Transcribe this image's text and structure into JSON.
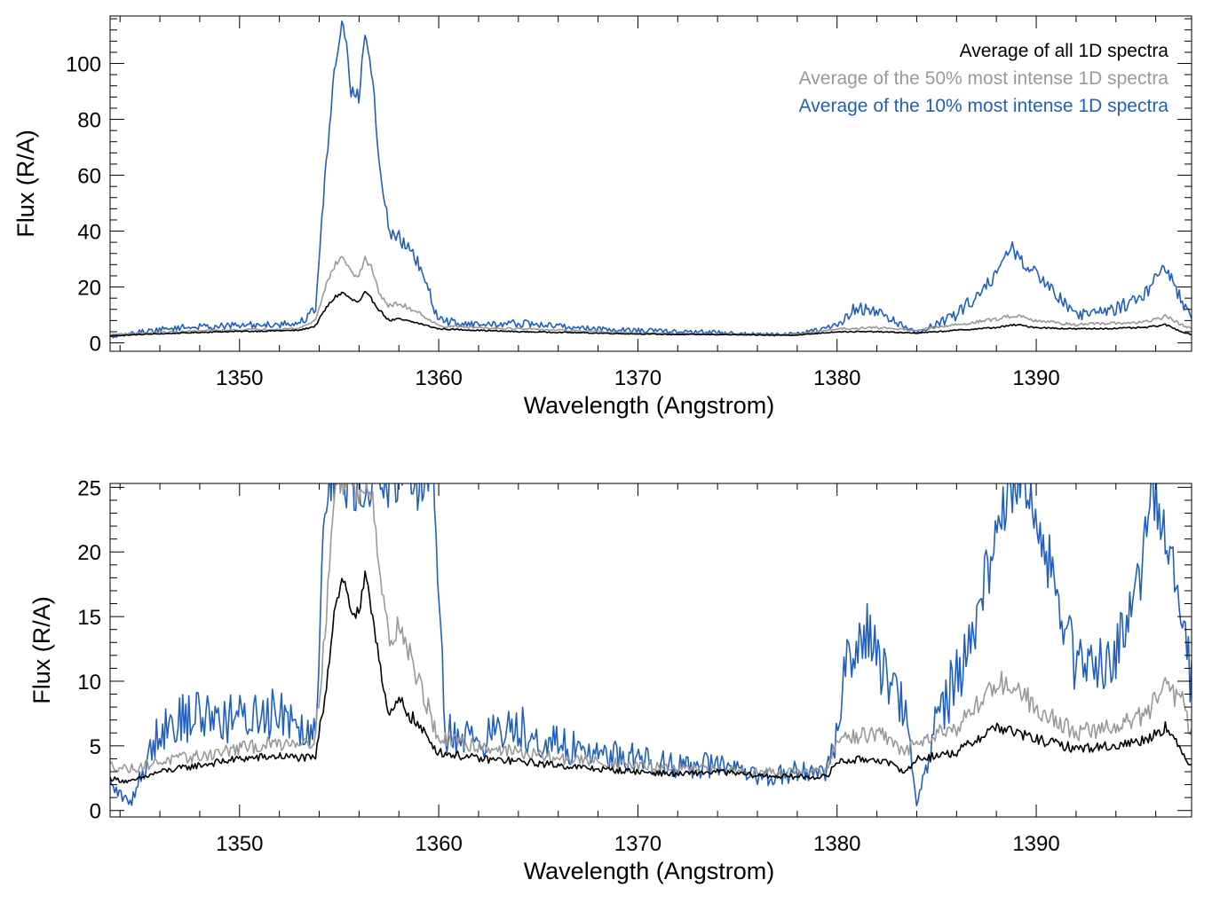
{
  "chart_data": [
    {
      "type": "line",
      "xlabel": "Wavelength (Angstrom)",
      "ylabel": "Flux (R/A)",
      "xlim": [
        1343.5,
        1397.8
      ],
      "ylim": [
        -3,
        117
      ],
      "xticks": [
        1350,
        1360,
        1370,
        1380,
        1390
      ],
      "yticks": [
        0,
        20,
        40,
        60,
        80,
        100
      ],
      "legend_position": "top-right",
      "grid": false,
      "series": [
        {
          "name": "Average of all 1D spectra",
          "color": "#000000",
          "x": [
            1343.5,
            1345,
            1347,
            1349,
            1351,
            1353,
            1353.8,
            1354.3,
            1354.8,
            1355.2,
            1355.6,
            1356.0,
            1356.3,
            1356.7,
            1357.0,
            1357.5,
            1358,
            1359,
            1360,
            1362,
            1364,
            1366,
            1368,
            1370,
            1372,
            1374,
            1376,
            1378,
            1380,
            1382,
            1384,
            1386,
            1388,
            1389,
            1390,
            1392,
            1394,
            1395.5,
            1396.5,
            1397.3,
            1397.8
          ],
          "values": [
            2.5,
            3.0,
            3.5,
            4.0,
            4.2,
            4.5,
            6.0,
            12.0,
            16.5,
            18.0,
            15.5,
            14.5,
            18.0,
            15.0,
            12.0,
            8.0,
            8.5,
            7.0,
            5.0,
            4.5,
            4.0,
            3.8,
            3.5,
            3.2,
            3.0,
            3.0,
            2.8,
            2.8,
            4.0,
            4.0,
            3.5,
            4.5,
            5.5,
            6.5,
            5.5,
            5.0,
            5.2,
            5.5,
            6.5,
            4.0,
            3.0
          ]
        },
        {
          "name": "Average of the 50% most intense 1D spectra",
          "color": "#999999",
          "x": [
            1343.5,
            1345,
            1347,
            1349,
            1351,
            1353,
            1353.8,
            1354.3,
            1354.8,
            1355.2,
            1355.6,
            1356.0,
            1356.3,
            1356.7,
            1357.0,
            1357.5,
            1358,
            1359,
            1360,
            1362,
            1364,
            1366,
            1368,
            1370,
            1372,
            1374,
            1376,
            1378,
            1380,
            1382,
            1384,
            1386,
            1388,
            1389,
            1390,
            1392,
            1394,
            1395.5,
            1396.5,
            1397.3,
            1397.8
          ],
          "values": [
            3.0,
            3.5,
            4.0,
            4.5,
            4.8,
            5.2,
            8.0,
            20.0,
            28.0,
            31.0,
            25.0,
            24.0,
            30.0,
            26.0,
            18.0,
            13.0,
            14.0,
            11.0,
            6.0,
            5.5,
            5.0,
            4.5,
            4.0,
            3.5,
            3.3,
            3.2,
            3.0,
            3.0,
            5.0,
            5.5,
            4.5,
            6.5,
            8.5,
            10.0,
            8.0,
            6.5,
            7.0,
            7.5,
            9.5,
            6.5,
            5.0
          ]
        },
        {
          "name": "Average of the 10% most intense 1D spectra",
          "color": "#1f5fbf",
          "x": [
            1343.5,
            1345,
            1347,
            1349,
            1351,
            1353,
            1353.8,
            1354.3,
            1354.8,
            1355.2,
            1355.6,
            1356.0,
            1356.3,
            1356.7,
            1357.0,
            1357.5,
            1358,
            1359,
            1360,
            1362,
            1364,
            1366,
            1368,
            1370,
            1372,
            1374,
            1376,
            1378,
            1380,
            1381,
            1382,
            1384,
            1386,
            1387,
            1388,
            1388.8,
            1389.5,
            1390.5,
            1392,
            1394,
            1395.5,
            1396.5,
            1397.3,
            1397.8
          ],
          "values": [
            2.0,
            4.0,
            5.5,
            6.0,
            6.5,
            7.0,
            12.0,
            60.0,
            100.0,
            117.0,
            90.0,
            88.0,
            112.0,
            95.0,
            65.0,
            40.0,
            38.0,
            28.0,
            8.0,
            6.5,
            7.0,
            6.0,
            5.0,
            4.5,
            4.0,
            3.8,
            3.0,
            3.2,
            6.0,
            13.0,
            11.0,
            3.5,
            10.0,
            17.0,
            25.0,
            34.0,
            27.0,
            22.0,
            10.0,
            12.0,
            18.0,
            28.0,
            15.0,
            8.0
          ]
        }
      ]
    },
    {
      "type": "line",
      "xlabel": "Wavelength (Angstrom)",
      "ylabel": "Flux (R/A)",
      "xlim": [
        1343.5,
        1397.8
      ],
      "ylim": [
        -0.5,
        25.3
      ],
      "xticks": [
        1350,
        1360,
        1370,
        1380,
        1390
      ],
      "yticks": [
        0,
        5,
        10,
        15,
        20,
        25
      ],
      "grid": false,
      "series": [
        {
          "name": "Average of all 1D spectra",
          "color": "#000000",
          "x": [
            1343.5,
            1344.5,
            1346,
            1348,
            1350,
            1352,
            1353.8,
            1354.3,
            1354.8,
            1355.2,
            1355.6,
            1356.0,
            1356.3,
            1356.7,
            1357.0,
            1357.5,
            1358,
            1359,
            1360,
            1362,
            1364,
            1366,
            1368,
            1370,
            1372,
            1374,
            1376,
            1378,
            1379.5,
            1380,
            1382,
            1383.5,
            1384,
            1386,
            1387,
            1388,
            1389,
            1390,
            1392,
            1394,
            1395.5,
            1396.5,
            1397.3,
            1397.8
          ],
          "values": [
            2.5,
            2.2,
            3.0,
            3.5,
            4.0,
            4.2,
            4.0,
            9.0,
            16.0,
            18.0,
            15.5,
            15.0,
            18.0,
            15.0,
            12.0,
            7.0,
            8.5,
            6.5,
            4.5,
            4.0,
            3.8,
            3.5,
            3.2,
            3.0,
            2.8,
            3.0,
            2.7,
            2.6,
            2.6,
            3.8,
            4.0,
            3.0,
            4.0,
            4.5,
            5.5,
            6.5,
            6.0,
            5.5,
            4.8,
            5.0,
            5.5,
            6.5,
            4.5,
            3.5
          ]
        },
        {
          "name": "Average of the 50% most intense 1D spectra",
          "color": "#999999",
          "x": [
            1343.5,
            1344.5,
            1346,
            1348,
            1350,
            1352,
            1353.8,
            1354.3,
            1354.8,
            1355.2,
            1355.6,
            1356.0,
            1356.3,
            1356.7,
            1357.0,
            1357.5,
            1358,
            1359,
            1360,
            1362,
            1364,
            1366,
            1368,
            1370,
            1372,
            1374,
            1376,
            1378,
            1379.5,
            1380,
            1382,
            1383.5,
            1384,
            1386,
            1387,
            1388,
            1389,
            1390,
            1392,
            1394,
            1395.5,
            1396.5,
            1397.3,
            1397.8
          ],
          "values": [
            3.5,
            3.2,
            3.8,
            4.2,
            4.8,
            5.2,
            5.5,
            14.0,
            25.3,
            25.3,
            25.3,
            24.0,
            25.3,
            24.5,
            19.0,
            13.0,
            14.5,
            10.0,
            5.5,
            5.0,
            4.5,
            4.0,
            3.8,
            3.5,
            3.2,
            3.2,
            3.0,
            3.0,
            3.0,
            5.5,
            6.0,
            4.5,
            5.5,
            6.5,
            8.0,
            10.0,
            9.5,
            8.0,
            6.0,
            6.5,
            7.5,
            9.5,
            8.5,
            6.0
          ]
        },
        {
          "name": "Average of the 10% most intense 1D spectra",
          "color": "#1f5fbf",
          "x": [
            1343.5,
            1344.5,
            1346,
            1348,
            1350,
            1352,
            1353.8,
            1354.3,
            1354.8,
            1355.2,
            1355.6,
            1356.0,
            1356.3,
            1356.7,
            1357.0,
            1357.5,
            1358,
            1359,
            1359.8,
            1360.3,
            1362,
            1364,
            1366,
            1368,
            1370,
            1372,
            1374,
            1376,
            1378,
            1379.5,
            1380,
            1380.5,
            1381.5,
            1382.5,
            1383.5,
            1384,
            1385,
            1386.5,
            1387.5,
            1388.2,
            1388.8,
            1389.6,
            1390.5,
            1392,
            1394,
            1395.2,
            1395.8,
            1396.5,
            1397.3,
            1397.8
          ],
          "values": [
            2.0,
            0.5,
            6.5,
            7.5,
            7.0,
            8.0,
            6.0,
            25.3,
            25.3,
            25.3,
            25.3,
            25.3,
            25.3,
            25.3,
            25.3,
            25.3,
            25.3,
            25.3,
            25.3,
            6.0,
            5.5,
            6.5,
            5.0,
            4.5,
            4.0,
            3.5,
            3.5,
            2.5,
            3.0,
            3.0,
            6.0,
            12.0,
            14.0,
            10.0,
            8.0,
            0.3,
            7.0,
            12.0,
            18.0,
            22.0,
            25.3,
            25.3,
            20.0,
            11.0,
            12.0,
            18.0,
            25.3,
            22.0,
            14.0,
            10.0
          ]
        }
      ]
    }
  ]
}
